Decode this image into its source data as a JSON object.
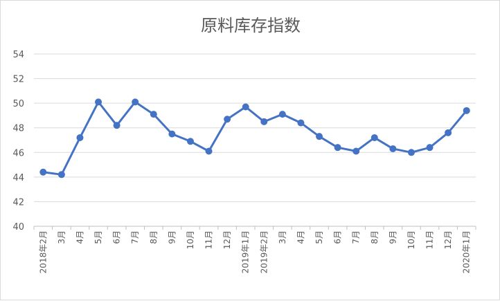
{
  "chart_data": {
    "type": "line",
    "title": "原料库存指数",
    "xlabel": "",
    "ylabel": "",
    "ylim": [
      40,
      54
    ],
    "yticks": [
      40,
      42,
      44,
      46,
      48,
      50,
      52,
      54
    ],
    "grid": true,
    "legend": "none",
    "categories": [
      "2018年2月",
      "3月",
      "4月",
      "5月",
      "6月",
      "7月",
      "8月",
      "9月",
      "10月",
      "11月",
      "12月",
      "2019年1月",
      "2019年2月",
      "3月",
      "4月",
      "5月",
      "6月",
      "7月",
      "8月",
      "9月",
      "10月",
      "11月",
      "12月",
      "2020年1月"
    ],
    "series": [
      {
        "values": [
          44.4,
          44.2,
          47.2,
          50.1,
          48.2,
          50.1,
          49.1,
          47.5,
          46.9,
          46.1,
          48.7,
          49.7,
          48.5,
          49.1,
          48.4,
          47.3,
          46.4,
          46.1,
          47.2,
          46.3,
          46.0,
          46.4,
          47.6,
          49.4
        ],
        "color": "#4472c4"
      }
    ]
  }
}
